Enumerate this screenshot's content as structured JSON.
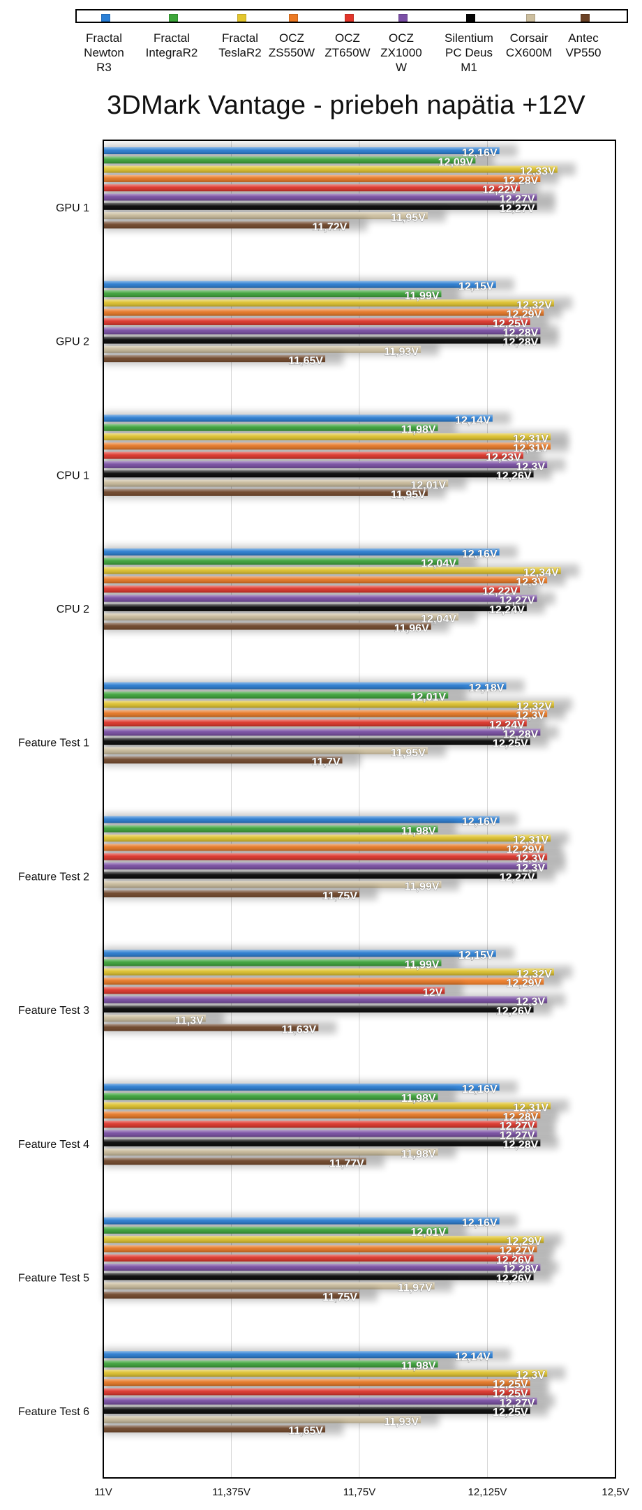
{
  "chart_data": {
    "type": "bar",
    "orientation": "horizontal",
    "title": "3DMark Vantage - priebeh napätia +12V",
    "xlim": [
      11,
      12.5
    ],
    "xticks": [
      11,
      11.375,
      11.75,
      12.125,
      12.5
    ],
    "xtick_labels": [
      "11V",
      "11,375V",
      "11,75V",
      "12,125V",
      "12,5V"
    ],
    "value_suffix": "V",
    "grid": true,
    "legend_position": "top",
    "categories": [
      "GPU 1",
      "GPU 2",
      "CPU 1",
      "CPU 2",
      "Feature Test 1",
      "Feature Test 2",
      "Feature Test 3",
      "Feature Test 4",
      "Feature Test 5",
      "Feature Test 6"
    ],
    "series": [
      {
        "name": "Fractal Newton R3",
        "color": "#2a7fd6",
        "values": [
          12.16,
          12.15,
          12.14,
          12.16,
          12.18,
          12.16,
          12.15,
          12.16,
          12.16,
          12.14
        ]
      },
      {
        "name": "Fractal IntegraR2",
        "color": "#3da63a",
        "values": [
          12.09,
          11.99,
          11.98,
          12.04,
          12.01,
          11.98,
          11.99,
          11.98,
          12.01,
          11.98
        ]
      },
      {
        "name": "Fractal TeslaR2",
        "color": "#e3c62e",
        "values": [
          12.33,
          12.32,
          12.31,
          12.34,
          12.32,
          12.31,
          12.32,
          12.31,
          12.29,
          12.3
        ]
      },
      {
        "name": "OCZ ZS550W",
        "color": "#ec7a25",
        "values": [
          12.28,
          12.29,
          12.31,
          12.3,
          12.3,
          12.29,
          12.29,
          12.28,
          12.27,
          12.25
        ]
      },
      {
        "name": "OCZ ZT650W",
        "color": "#e2352a",
        "values": [
          12.22,
          12.25,
          12.23,
          12.22,
          12.24,
          12.3,
          12.0,
          12.27,
          12.26,
          12.25
        ]
      },
      {
        "name": "OCZ ZX1000 W",
        "color": "#7b4fa6",
        "values": [
          12.27,
          12.28,
          12.3,
          12.27,
          12.28,
          12.3,
          12.3,
          12.27,
          12.28,
          12.27
        ]
      },
      {
        "name": "Silentium PC Deus M1",
        "color": "#050505",
        "values": [
          12.27,
          12.28,
          12.26,
          12.24,
          12.25,
          12.27,
          12.26,
          12.28,
          12.26,
          12.25
        ]
      },
      {
        "name": "Corsair CX600M",
        "color": "#cdbf9f",
        "values": [
          11.95,
          11.93,
          12.01,
          12.04,
          11.95,
          11.99,
          11.3,
          11.98,
          11.97,
          11.93
        ]
      },
      {
        "name": "Antec VP550",
        "color": "#6b4226",
        "values": [
          11.72,
          11.65,
          11.95,
          11.96,
          11.7,
          11.75,
          11.63,
          11.77,
          11.75,
          11.65
        ]
      }
    ]
  },
  "legend": {
    "items": [
      {
        "label_lines": [
          "Fractal",
          "Newton",
          "R3"
        ]
      },
      {
        "label_lines": [
          "Fractal",
          "IntegraR2"
        ]
      },
      {
        "label_lines": [
          "Fractal",
          "TeslaR2"
        ]
      },
      {
        "label_lines": [
          "OCZ",
          "ZS550W"
        ]
      },
      {
        "label_lines": [
          "OCZ",
          "ZT650W"
        ]
      },
      {
        "label_lines": [
          "OCZ",
          "ZX1000",
          "W"
        ]
      },
      {
        "label_lines": [
          "Silentium",
          "PC Deus",
          "M1"
        ]
      },
      {
        "label_lines": [
          "Corsair",
          "CX600M"
        ]
      },
      {
        "label_lines": [
          "Antec",
          "VP550"
        ]
      }
    ]
  }
}
